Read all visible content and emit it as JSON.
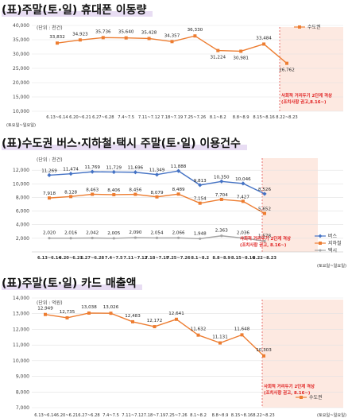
{
  "charts": [
    {
      "title": "(표)주말(토·일) 휴대폰 이동량",
      "unit": "(단위 : 천건)",
      "axis_note": "(토요일~일요일)",
      "legend": [
        "수도권"
      ],
      "annotation": [
        "사회적 거리두기 2단계 격상",
        "(조치사항 권고,8.16~)"
      ]
    },
    {
      "title": "(표)수도권 버스·지하철·택시 주말(토·일) 이용건수",
      "unit": "(단위 : 천건)",
      "axis_note": "(토요일~일요일)",
      "legend": [
        "버스",
        "지하철",
        "택시"
      ],
      "annotation": [
        "사회적 거리두기 2단계 격상",
        "(조치사항 권고, 8.16~)"
      ]
    },
    {
      "title": "(표)주말(토·일) 카드 매출액",
      "unit": "(단위 : 억원)",
      "axis_note": "(토요일~일요일)",
      "legend": [
        "수도권"
      ],
      "annotation": [
        "사회적 거리두기 2단계 격상",
        "(조치사항 권고, 8.16~)"
      ]
    }
  ],
  "chart_data": [
    {
      "type": "line",
      "categories": [
        "6.13~6.14",
        "6.20~6.21",
        "6.27~6.28",
        "7.4~7.5",
        "7.11~7.12",
        "7.18~7.19",
        "7.25~7.26",
        "8.1~8.2",
        "8.8~8.9",
        "8.15~8.16",
        "8.22~8.23"
      ],
      "series": [
        {
          "name": "수도권",
          "values": [
            33832,
            34923,
            35736,
            35640,
            35428,
            34357,
            36330,
            31224,
            30981,
            33484,
            26762
          ],
          "labels": [
            "33,832",
            "34,923",
            "35,736",
            "35,640",
            "35,428",
            "34,357",
            "36,330",
            "31,224",
            "30,981",
            "33,484",
            "26,762"
          ]
        }
      ],
      "ylim": [
        10000,
        40000
      ],
      "yticks": [
        10000,
        15000,
        20000,
        25000,
        30000,
        35000,
        40000
      ],
      "ytick_labels": [
        "10,000",
        "15,000",
        "20,000",
        "25,000",
        "30,000",
        "35,000",
        "40,000"
      ],
      "colors": [
        "#ed7d31"
      ]
    },
    {
      "type": "line",
      "categories": [
        "6.13~6.14",
        "6.20~6.21",
        "6.27~6.28",
        "7.4~7.5",
        "7.11~7.12",
        "7.18~7.19",
        "7.25~7.26",
        "8.1~8.2",
        "8.8~8.9",
        "8.15~8.16",
        "8.22~8.23"
      ],
      "series": [
        {
          "name": "버스",
          "values": [
            11269,
            11474,
            11769,
            11729,
            11696,
            11349,
            11888,
            9813,
            10350,
            10046,
            8526
          ],
          "labels": [
            "11,269",
            "11,474",
            "11,769",
            "11,729",
            "11,696",
            "11,349",
            "11,888",
            "9,813",
            "10,350",
            "10,046",
            "8,526"
          ]
        },
        {
          "name": "지하철",
          "values": [
            7918,
            8128,
            8463,
            8406,
            8456,
            8079,
            8489,
            7154,
            7704,
            7427,
            5652
          ],
          "labels": [
            "7,918",
            "8,128",
            "8,463",
            "8,406",
            "8,456",
            "8,079",
            "8,489",
            "7,154",
            "7,704",
            "7,427",
            "5,652"
          ]
        },
        {
          "name": "택시",
          "values": [
            2020,
            2016,
            2042,
            2005,
            2090,
            2054,
            2066,
            1948,
            2363,
            2036,
            1578
          ],
          "labels": [
            "2,020",
            "2,016",
            "2,042",
            "2,005",
            "2,090",
            "2,054",
            "2,066",
            "1,948",
            "2,363",
            "2,036",
            "1,578"
          ]
        }
      ],
      "ylim": [
        0,
        14000
      ],
      "yticks": [
        2000,
        4000,
        6000,
        8000,
        10000,
        12000
      ],
      "ytick_labels": [
        "2,000",
        "4,000",
        "6,000",
        "8,000",
        "10,000",
        "12,000"
      ],
      "colors": [
        "#4472c4",
        "#ed7d31",
        "#a5a5a5"
      ]
    },
    {
      "type": "line",
      "categories": [
        "6.13~6.14",
        "6.20~6.21",
        "6.27~6.28",
        "7.4~7.5",
        "7.11~7.12",
        "7.18~7.19",
        "7.25~7.26",
        "8.1~8.2",
        "8.8~8.9",
        "8.15~8.16",
        "8.22~8.23"
      ],
      "series": [
        {
          "name": "수도권",
          "values": [
            12949,
            12735,
            13038,
            13026,
            12483,
            12172,
            12641,
            11632,
            11131,
            11648,
            10303
          ],
          "labels": [
            "12,949",
            "12,735",
            "13,038",
            "13,026",
            "12,483",
            "12,172",
            "12,641",
            "11,632",
            "11,131",
            "11,648",
            "10,303"
          ]
        }
      ],
      "ylim": [
        7000,
        14000
      ],
      "yticks": [
        7000,
        8000,
        9000,
        10000,
        11000,
        12000,
        13000,
        14000
      ],
      "ytick_labels": [
        "7,000",
        "8,000",
        "9,000",
        "10,000",
        "11,000",
        "12,000",
        "13,000",
        "14,000"
      ],
      "colors": [
        "#ed7d31"
      ]
    }
  ]
}
